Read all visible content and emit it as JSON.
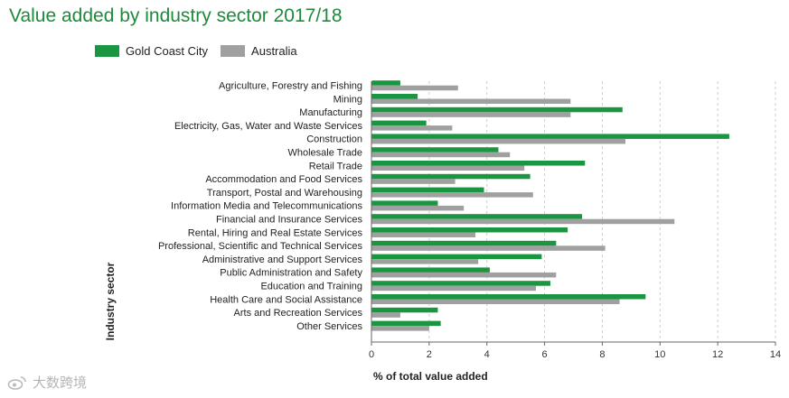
{
  "chart_data": {
    "type": "bar",
    "orientation": "horizontal",
    "title": "Value added by industry sector 2017/18",
    "xlabel": "% of total value added",
    "ylabel": "Industry sector",
    "xlim": [
      0,
      14
    ],
    "xticks": [
      0,
      2,
      4,
      6,
      8,
      10,
      12,
      14
    ],
    "grid": true,
    "legend_position": "top-left",
    "categories": [
      "Agriculture, Forestry and Fishing",
      "Mining",
      "Manufacturing",
      "Electricity, Gas, Water and Waste Services",
      "Construction",
      "Wholesale Trade",
      "Retail Trade",
      "Accommodation and Food Services",
      "Transport, Postal and Warehousing",
      "Information Media and Telecommunications",
      "Financial and Insurance Services",
      "Rental, Hiring and Real Estate Services",
      "Professional, Scientific and Technical Services",
      "Administrative and Support Services",
      "Public Administration and Safety",
      "Education and Training",
      "Health Care and Social Assistance",
      "Arts and Recreation Services",
      "Other Services"
    ],
    "series": [
      {
        "name": "Gold Coast City",
        "color": "#1a9641",
        "values": [
          1.0,
          1.6,
          8.7,
          1.9,
          12.4,
          4.4,
          7.4,
          5.5,
          3.9,
          2.3,
          7.3,
          6.8,
          6.4,
          5.9,
          4.1,
          6.2,
          9.5,
          2.3,
          2.4
        ]
      },
      {
        "name": "Australia",
        "color": "#a0a0a0",
        "values": [
          3.0,
          6.9,
          6.9,
          2.8,
          8.8,
          4.8,
          5.3,
          2.9,
          5.6,
          3.2,
          10.5,
          3.6,
          8.1,
          3.7,
          6.4,
          5.7,
          8.6,
          1.0,
          2.0
        ]
      }
    ]
  },
  "watermark": {
    "text": "大数跨境"
  }
}
